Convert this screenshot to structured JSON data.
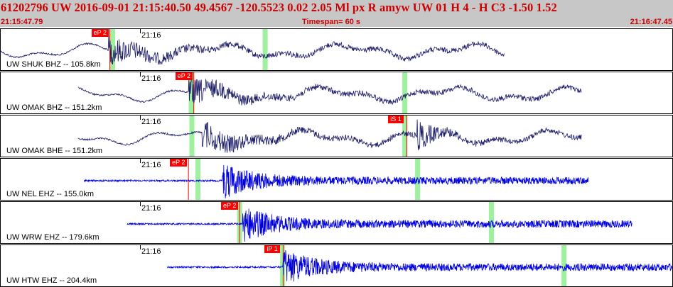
{
  "header": {
    "title": "61202796 UW 2016-09-01 21:15:40.50   49.4567 -120.5523   0.02  2.05 Ml  px  R amyw     UW 01  H   4  -  H C3   -1.50  1.52",
    "time_start": "21:15:47.79",
    "timespan": "Timespan=  60 s",
    "time_end": "21:16:47.45"
  },
  "colors": {
    "header_bg": "#c7c7c7",
    "header_text": "#cc0000",
    "trace_bh": "#1a1a66",
    "trace_eh": "#0000dd",
    "pick": "#ff0000",
    "window": "#9ff09f"
  },
  "panels": [
    {
      "label": "UW SHUK BHZ -- 105.8km",
      "minute": "21:16",
      "trace_type": "BH",
      "pick": {
        "label": "eP 2",
        "pos": 0.135
      },
      "windows": [
        0.163,
        0.39
      ],
      "trace_start": 0.0,
      "trace_end": 0.75,
      "onset": 0.16
    },
    {
      "label": "UW OMAK BHZ -- 151.2km",
      "minute": "21:16",
      "trace_type": "BH",
      "pick": {
        "label": "eP 2",
        "pos": 0.26
      },
      "windows": [
        0.28,
        0.598
      ],
      "trace_start": 0.115,
      "trace_end": 0.865,
      "onset": 0.28
    },
    {
      "label": "UW OMAK BHE -- 151.2km",
      "minute": "21:16",
      "trace_type": "BH",
      "pick": {
        "label": "iS 1",
        "pos": 0.577
      },
      "windows": [
        0.281,
        0.598
      ],
      "trace_start": 0.115,
      "trace_end": 0.865,
      "onset": 0.3,
      "onset2": 0.62
    },
    {
      "label": "UW NEL EHZ -- 155.0km",
      "minute": "21:16",
      "trace_type": "EH",
      "pick": {
        "label": "eP 2",
        "pos": 0.252
      },
      "windows": [
        0.29,
        0.617
      ],
      "trace_start": 0.124,
      "trace_end": 0.875,
      "onset": 0.33
    },
    {
      "label": "UW WRW EHZ -- 179.6km",
      "minute": "21:16",
      "trace_type": "EH",
      "pick": {
        "label": "eP 2",
        "pos": 0.328
      },
      "windows": [
        0.352,
        0.727
      ],
      "trace_start": 0.188,
      "trace_end": 0.94,
      "onset": 0.36
    },
    {
      "label": "UW HTW EHZ -- 204.4km",
      "minute": "21:16",
      "trace_type": "EH",
      "pick": {
        "label": "iP 1",
        "pos": 0.393
      },
      "windows": [
        0.416,
        0.835
      ],
      "trace_start": 0.248,
      "trace_end": 1.0,
      "onset": 0.42
    }
  ]
}
